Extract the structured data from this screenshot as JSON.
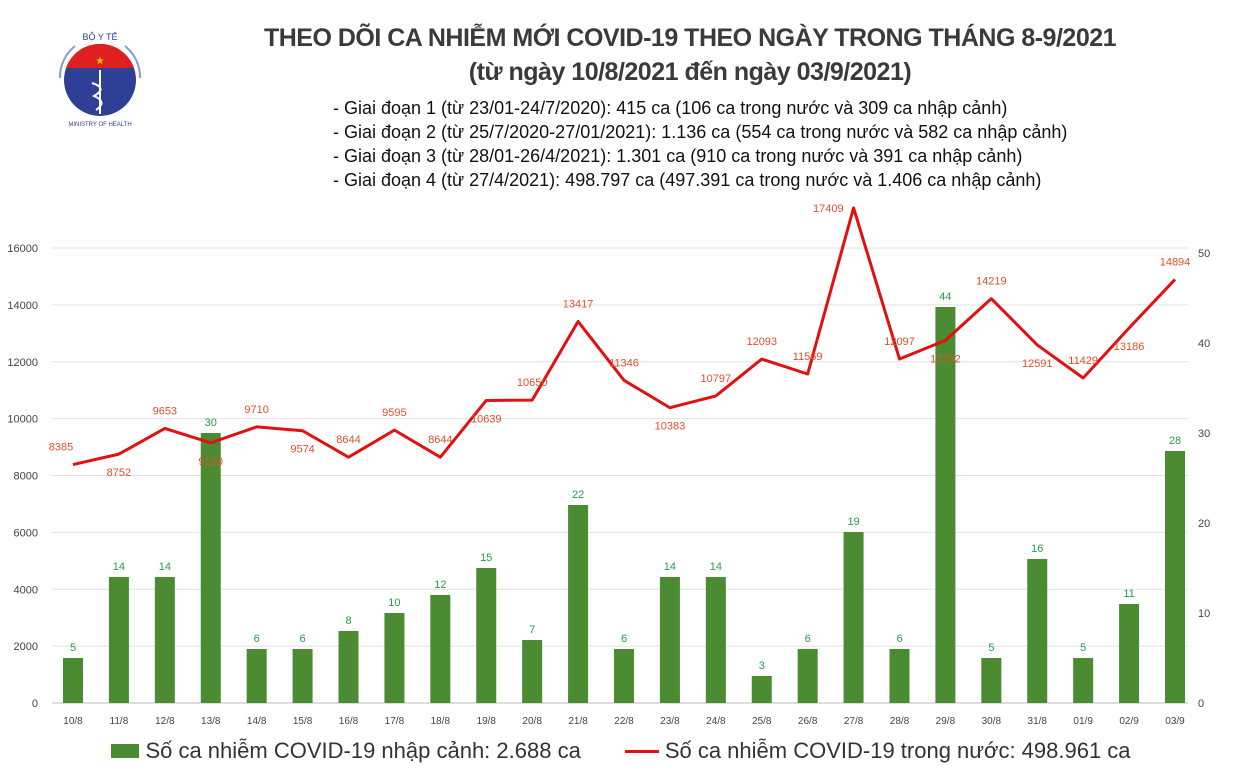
{
  "logo": {
    "text_top": "BỘ Y TẾ",
    "text_bottom": "MINISTRY OF HEALTH"
  },
  "title": "THEO DÕI CA NHIỄM MỚI COVID-19 THEO NGÀY TRONG THÁNG 8-9/2021",
  "subtitle": "(từ ngày 10/8/2021 đến ngày 03/9/2021)",
  "notes": [
    "- Giai đoạn 1 (từ 23/01-24/7/2020): 415 ca (106 ca trong nước và 309 ca nhập cảnh)",
    "- Giai đoạn 2 (từ 25/7/2020-27/01/2021): 1.136 ca (554 ca trong nước và 582 ca nhập cảnh)",
    "- Giai đoạn 3 (từ 28/01-26/4/2021): 1.301 ca (910 ca trong nước và 391 ca nhập cảnh)",
    "- Giai đoạn 4 (từ 27/4/2021): 498.797 ca (497.391 ca trong nước và 1.406 ca nhập cảnh)"
  ],
  "chart_data": {
    "type": "bar+line",
    "categories": [
      "10/8",
      "11/8",
      "12/8",
      "13/8",
      "14/8",
      "15/8",
      "16/8",
      "17/8",
      "18/8",
      "19/8",
      "20/8",
      "21/8",
      "22/8",
      "23/8",
      "24/8",
      "25/8",
      "26/8",
      "27/8",
      "28/8",
      "29/8",
      "30/8",
      "31/8",
      "01/9",
      "02/9",
      "03/9"
    ],
    "series": [
      {
        "name": "Số ca nhiễm COVID-19 nhập cảnh: 2.688 ca",
        "type": "bar",
        "axis": "right",
        "color": "#4b8b32",
        "label_color": "#22a04b",
        "values": [
          5,
          14,
          14,
          30,
          6,
          6,
          8,
          10,
          12,
          15,
          7,
          22,
          6,
          14,
          14,
          3,
          6,
          19,
          6,
          44,
          5,
          16,
          5,
          11,
          28
        ]
      },
      {
        "name": "Số ca nhiễm COVID-19 trong nước: 498.961 ca",
        "type": "line",
        "axis": "left",
        "color": "#e31010",
        "label_color": "#e0502a",
        "values": [
          8385,
          8752,
          9653,
          9150,
          9710,
          9574,
          8644,
          9595,
          8644,
          10639,
          10650,
          13417,
          11346,
          10383,
          10797,
          12093,
          11569,
          17409,
          12097,
          12752,
          14219,
          12591,
          11429,
          13186,
          14894
        ]
      }
    ],
    "left_axis": {
      "ticks": [
        0,
        2000,
        4000,
        6000,
        8000,
        10000,
        12000,
        14000,
        16000
      ],
      "range": [
        0,
        16000
      ]
    },
    "right_axis": {
      "ticks": [
        0,
        10,
        20,
        30,
        40,
        50
      ],
      "range": [
        0,
        50
      ]
    },
    "grid": true,
    "legend": "bottom"
  }
}
